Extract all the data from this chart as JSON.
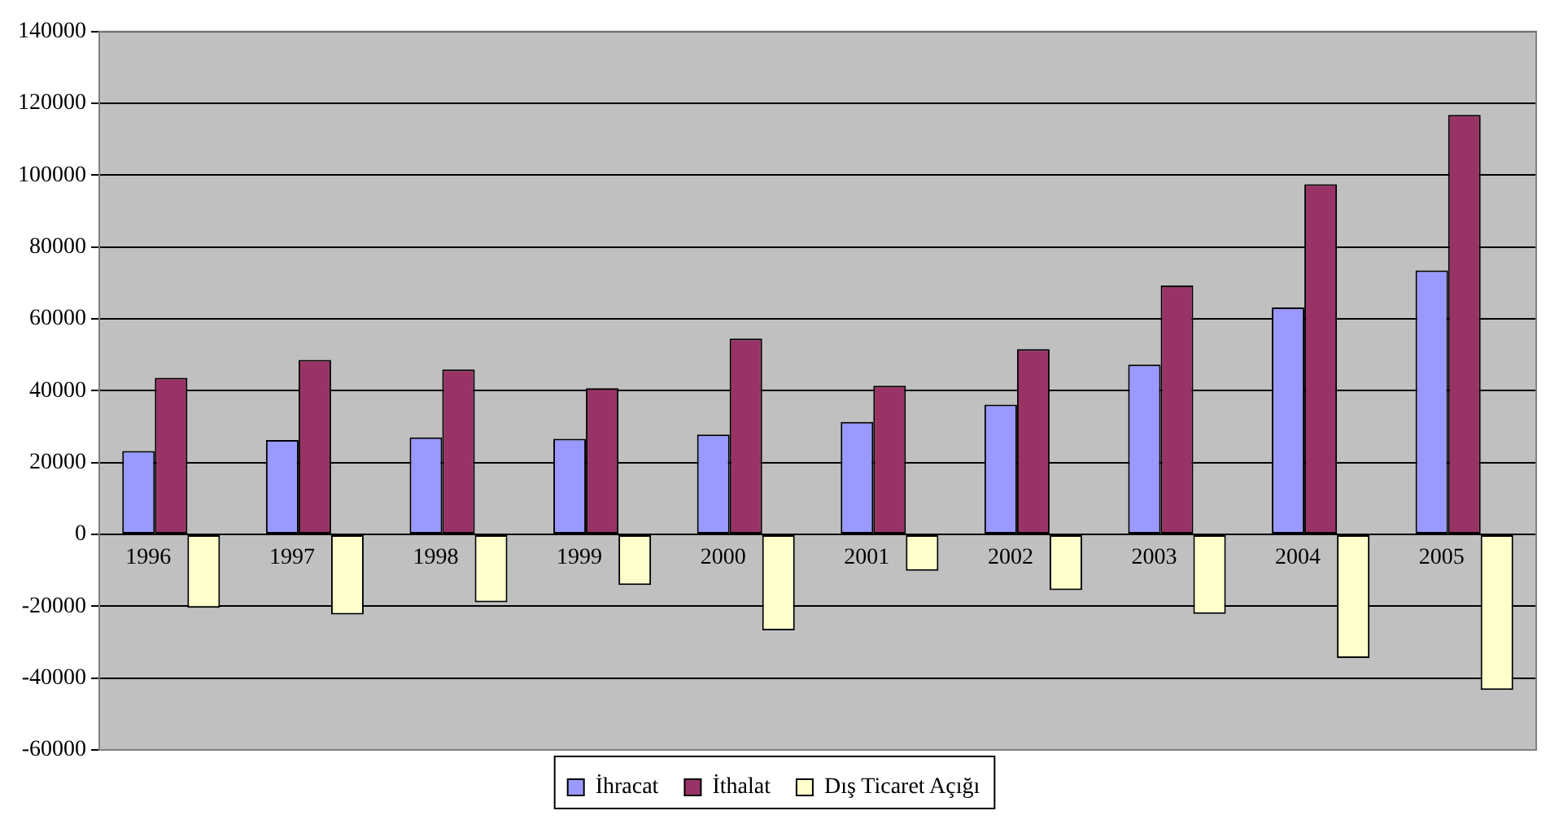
{
  "chart_data": {
    "type": "bar",
    "categories": [
      "1996",
      "1997",
      "1998",
      "1999",
      "2000",
      "2001",
      "2002",
      "2003",
      "2004",
      "2005"
    ],
    "series": [
      {
        "name": "İhracat",
        "color": "#9999ff",
        "values": [
          23200,
          26300,
          27000,
          26600,
          27800,
          31300,
          36100,
          47300,
          63200,
          73500
        ]
      },
      {
        "name": "İthalat",
        "color": "#993366",
        "values": [
          43600,
          48600,
          45900,
          40700,
          54500,
          41400,
          51600,
          69300,
          97500,
          116800
        ]
      },
      {
        "name": "Dış Ticaret Açığı",
        "color": "#ffffcc",
        "values": [
          -20400,
          -22300,
          -18900,
          -14100,
          -26700,
          -10100,
          -15500,
          -22100,
          -34400,
          -43300
        ]
      }
    ],
    "ylim": [
      -60000,
      140000
    ],
    "yticks": [
      -60000,
      -40000,
      -20000,
      0,
      20000,
      40000,
      60000,
      80000,
      100000,
      120000,
      140000
    ],
    "grid": "y",
    "legend": "bottom"
  }
}
